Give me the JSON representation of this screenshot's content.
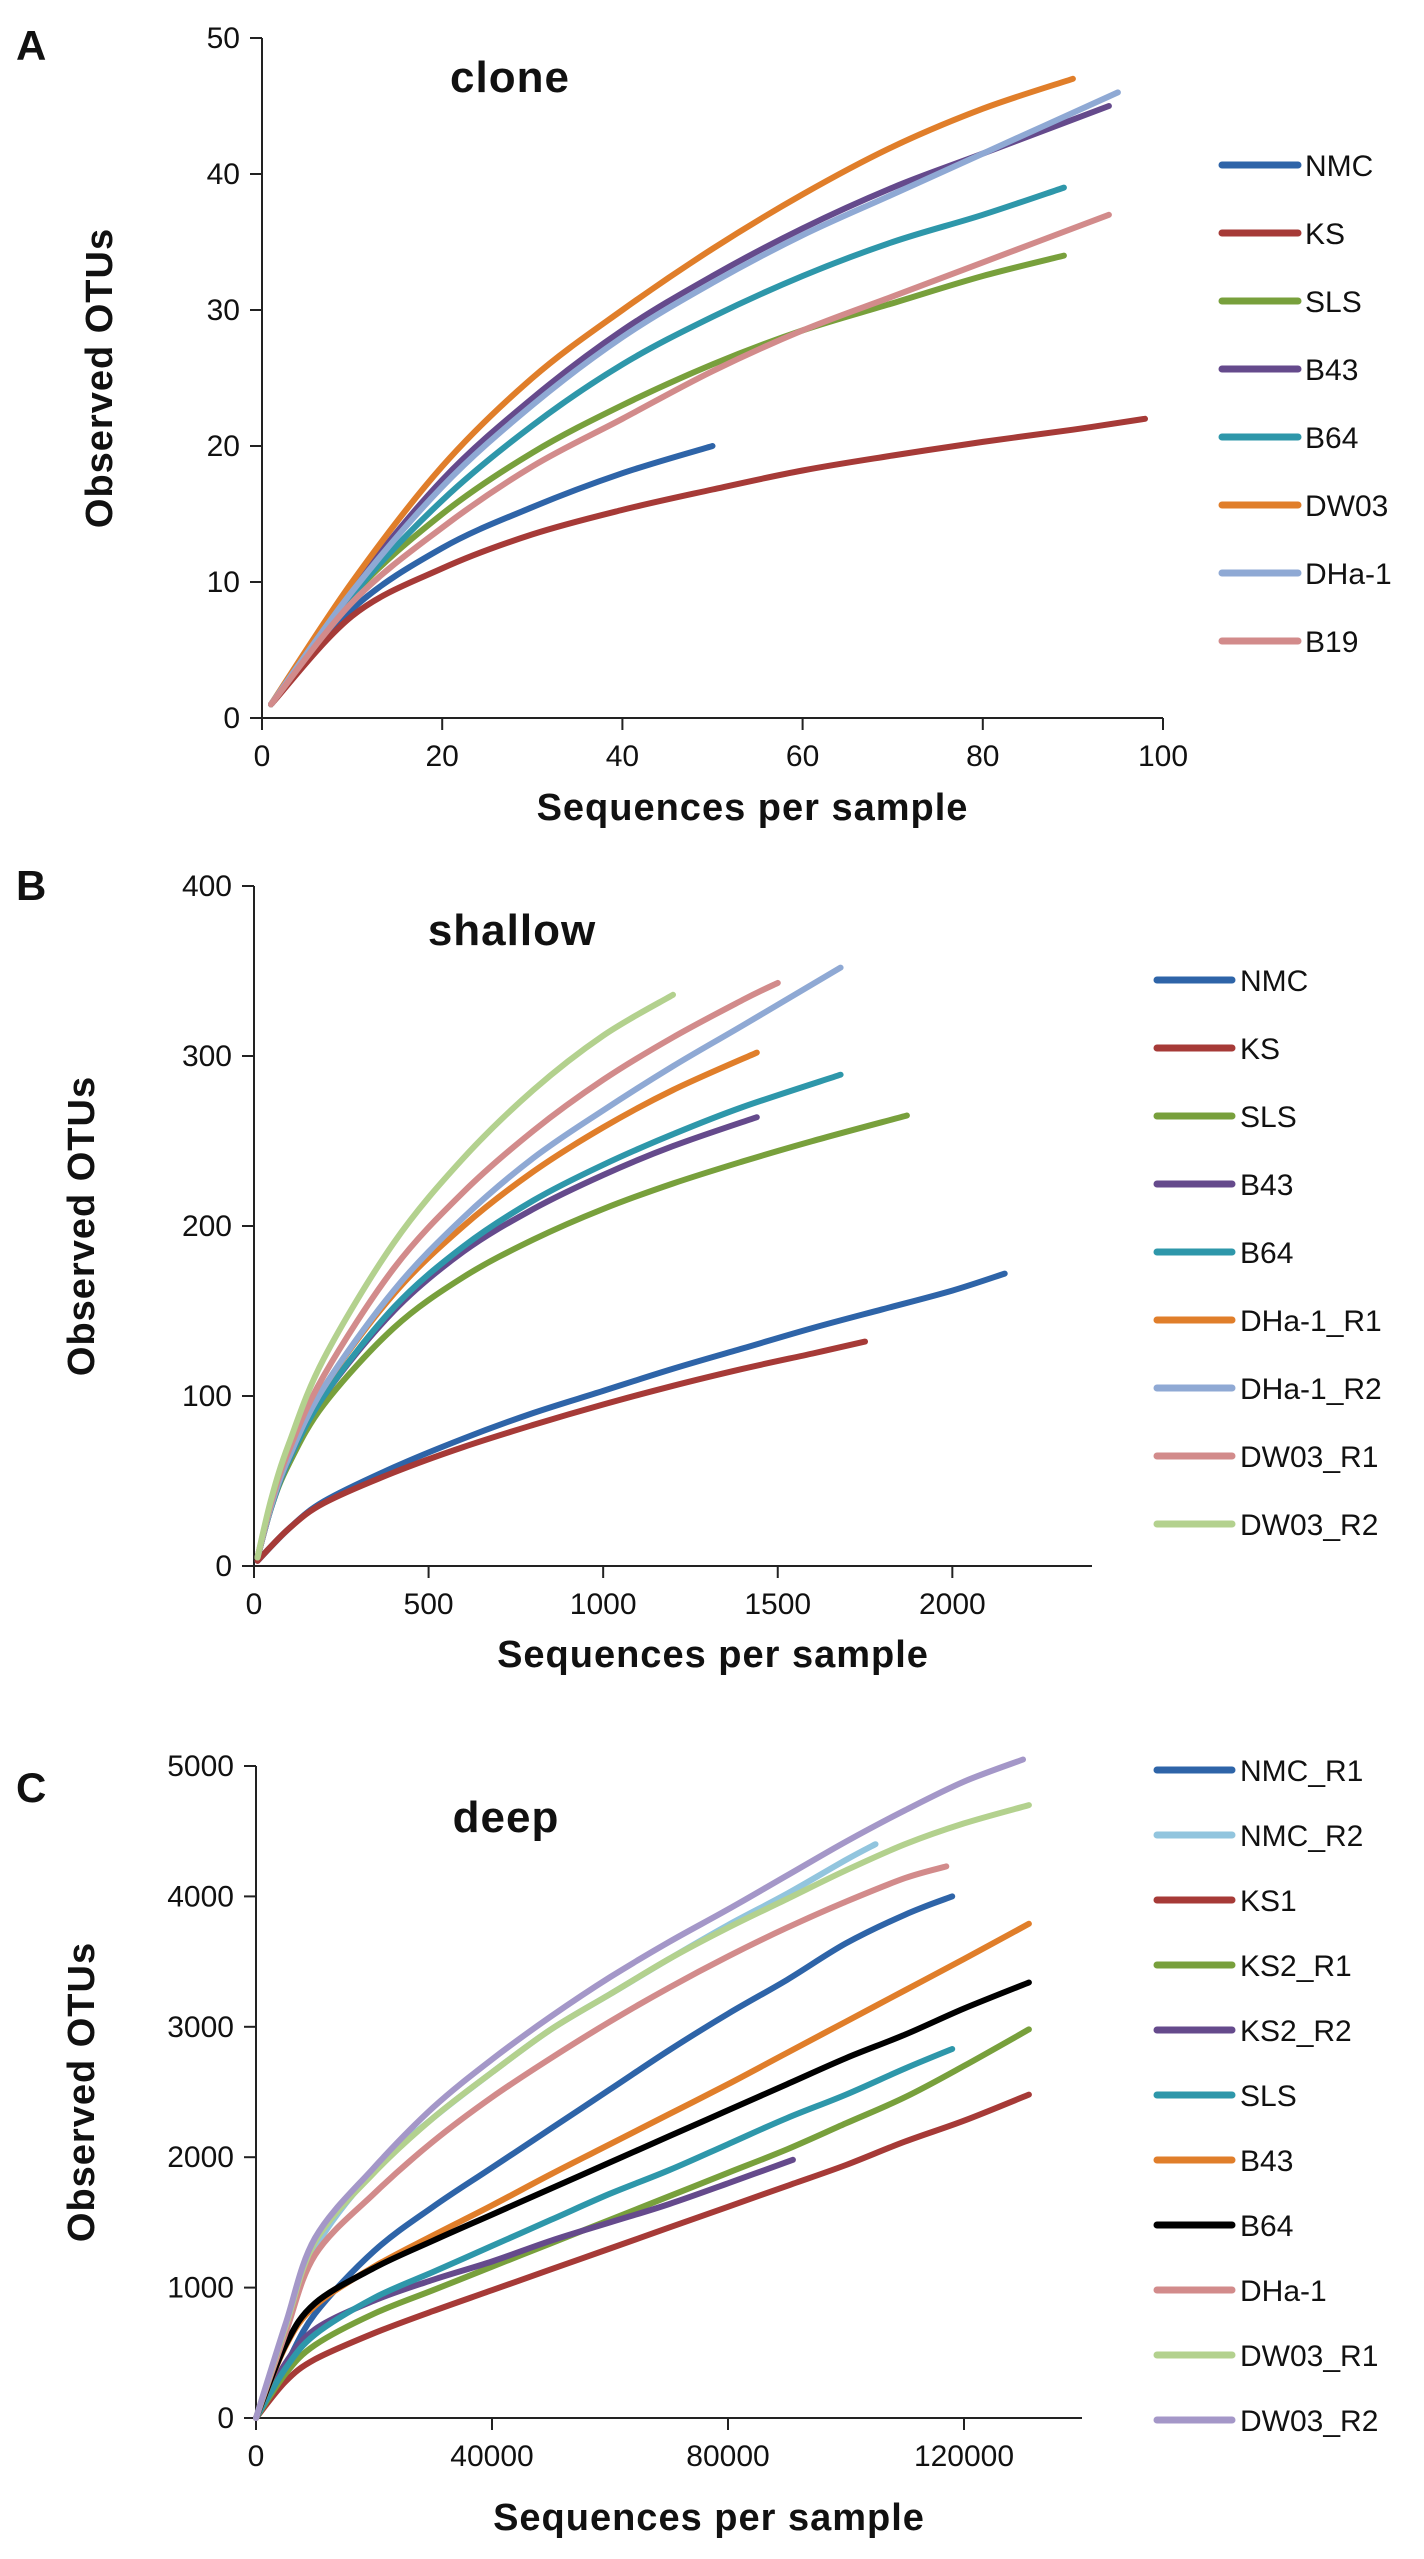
{
  "chart_data": [
    {
      "type": "line",
      "panel": "A",
      "title": "clone",
      "xlabel": "Sequences per sample",
      "ylabel": "Observed OTUs",
      "xlim": [
        0,
        100
      ],
      "ylim": [
        0,
        50
      ],
      "xticks": [
        0,
        20,
        40,
        60,
        80,
        100
      ],
      "yticks": [
        0,
        10,
        20,
        30,
        40,
        50
      ],
      "legend_position": "right",
      "series": [
        {
          "name": "NMC",
          "color": "#2e64a8",
          "x": [
            1,
            10,
            20,
            30,
            40,
            50
          ],
          "y": [
            1,
            8,
            12.5,
            15.5,
            18,
            20
          ]
        },
        {
          "name": "KS",
          "color": "#a63a37",
          "x": [
            1,
            10,
            20,
            30,
            40,
            50,
            60,
            70,
            80,
            90,
            98
          ],
          "y": [
            1,
            7.5,
            11,
            13.5,
            15.3,
            16.8,
            18.2,
            19.3,
            20.3,
            21.2,
            22
          ]
        },
        {
          "name": "SLS",
          "color": "#78a03c",
          "x": [
            1,
            10,
            20,
            30,
            40,
            50,
            60,
            70,
            80,
            89
          ],
          "y": [
            1,
            9,
            15,
            19.5,
            23,
            26,
            28.5,
            30.5,
            32.5,
            34
          ]
        },
        {
          "name": "B43",
          "color": "#654a8c",
          "x": [
            1,
            10,
            20,
            30,
            40,
            50,
            60,
            70,
            80,
            94
          ],
          "y": [
            1,
            9.5,
            17.5,
            23.5,
            28.5,
            32.5,
            36,
            39,
            41.5,
            45
          ]
        },
        {
          "name": "B64",
          "color": "#2e97aa",
          "x": [
            1,
            10,
            20,
            30,
            40,
            50,
            60,
            70,
            80,
            89
          ],
          "y": [
            1,
            9,
            16,
            21.5,
            26,
            29.5,
            32.5,
            35,
            37,
            39
          ]
        },
        {
          "name": "DW03",
          "color": "#e07e2a",
          "x": [
            1,
            10,
            20,
            30,
            40,
            50,
            60,
            70,
            80,
            90
          ],
          "y": [
            1,
            10,
            18.5,
            25,
            30,
            34.5,
            38.5,
            42,
            44.8,
            47
          ]
        },
        {
          "name": "DHa-1",
          "color": "#8fa9d4",
          "x": [
            1,
            10,
            20,
            30,
            40,
            50,
            60,
            70,
            80,
            95
          ],
          "y": [
            1,
            9.3,
            17,
            23,
            28,
            32,
            35.5,
            38.5,
            41.5,
            46
          ]
        },
        {
          "name": "B19",
          "color": "#d28b8b",
          "x": [
            1,
            10,
            20,
            30,
            40,
            50,
            60,
            70,
            80,
            94
          ],
          "y": [
            1,
            8.5,
            14,
            18.5,
            22,
            25.5,
            28.5,
            31,
            33.5,
            37
          ]
        }
      ]
    },
    {
      "type": "line",
      "panel": "B",
      "title": "shallow",
      "xlabel": "Sequences per sample",
      "ylabel": "Observed OTUs",
      "xlim": [
        0,
        2400
      ],
      "ylim": [
        0,
        400
      ],
      "xticks": [
        0,
        500,
        1000,
        1500,
        2000
      ],
      "yticks": [
        0,
        100,
        200,
        300,
        400
      ],
      "legend_position": "right",
      "series": [
        {
          "name": "NMC",
          "color": "#2e64a8",
          "x": [
            10,
            100,
            200,
            400,
            600,
            800,
            1000,
            1200,
            1400,
            1600,
            1800,
            2000,
            2150
          ],
          "y": [
            3,
            22,
            38,
            58,
            75,
            90,
            103,
            116,
            128,
            140,
            151,
            162,
            172
          ]
        },
        {
          "name": "KS",
          "color": "#a63a37",
          "x": [
            10,
            100,
            200,
            400,
            600,
            800,
            1000,
            1200,
            1400,
            1600,
            1750
          ],
          "y": [
            3,
            22,
            37,
            55,
            70,
            83,
            95,
            106,
            116,
            125,
            132
          ]
        },
        {
          "name": "SLS",
          "color": "#78a03c",
          "x": [
            10,
            50,
            100,
            200,
            400,
            600,
            800,
            1000,
            1200,
            1400,
            1600,
            1870
          ],
          "y": [
            5,
            35,
            60,
            95,
            140,
            170,
            192,
            210,
            225,
            238,
            250,
            265
          ]
        },
        {
          "name": "B43",
          "color": "#654a8c",
          "x": [
            10,
            50,
            100,
            200,
            400,
            600,
            800,
            1000,
            1200,
            1440
          ],
          "y": [
            5,
            35,
            62,
            100,
            150,
            185,
            210,
            230,
            247,
            264
          ]
        },
        {
          "name": "B64",
          "color": "#2e97aa",
          "x": [
            10,
            50,
            100,
            200,
            400,
            600,
            800,
            1000,
            1200,
            1400,
            1680
          ],
          "y": [
            5,
            35,
            62,
            100,
            152,
            188,
            215,
            236,
            254,
            270,
            289
          ]
        },
        {
          "name": "DHa-1_R1",
          "color": "#e07e2a",
          "x": [
            10,
            50,
            100,
            200,
            400,
            600,
            800,
            1000,
            1200,
            1440
          ],
          "y": [
            5,
            36,
            64,
            105,
            160,
            200,
            232,
            258,
            280,
            302
          ]
        },
        {
          "name": "DHa-1_R2",
          "color": "#8fa9d4",
          "x": [
            10,
            50,
            100,
            200,
            400,
            600,
            800,
            1000,
            1200,
            1400,
            1680
          ],
          "y": [
            5,
            36,
            64,
            105,
            162,
            205,
            240,
            268,
            294,
            318,
            352
          ]
        },
        {
          "name": "DW03_R1",
          "color": "#d28b8b",
          "x": [
            10,
            50,
            100,
            200,
            400,
            600,
            800,
            1000,
            1200,
            1400,
            1500
          ],
          "y": [
            5,
            38,
            68,
            112,
            175,
            220,
            256,
            286,
            311,
            333,
            343
          ]
        },
        {
          "name": "DW03_R2",
          "color": "#b3d18e",
          "x": [
            10,
            50,
            100,
            200,
            400,
            600,
            800,
            1000,
            1200
          ],
          "y": [
            5,
            40,
            72,
            122,
            190,
            240,
            280,
            312,
            336
          ]
        }
      ]
    },
    {
      "type": "line",
      "panel": "C",
      "title": "deep",
      "xlabel": "Sequences per sample",
      "ylabel": "Observed OTUs",
      "xlim": [
        0,
        140000
      ],
      "ylim": [
        0,
        5000
      ],
      "xticks": [
        0,
        40000,
        80000,
        120000
      ],
      "yticks": [
        0,
        1000,
        2000,
        3000,
        4000,
        5000
      ],
      "legend_position": "right",
      "series": [
        {
          "name": "NMC_R1",
          "color": "#2e64a8",
          "x": [
            0,
            5000,
            10000,
            20000,
            30000,
            40000,
            50000,
            60000,
            70000,
            80000,
            90000,
            100000,
            110000,
            118000
          ],
          "y": [
            0,
            400,
            800,
            1280,
            1620,
            1920,
            2220,
            2520,
            2820,
            3100,
            3360,
            3640,
            3860,
            4000
          ]
        },
        {
          "name": "NMC_R2",
          "color": "#92c5de",
          "x": [
            0,
            5000,
            10000,
            20000,
            30000,
            40000,
            50000,
            60000,
            70000,
            80000,
            90000,
            100000,
            105000
          ],
          "y": [
            0,
            650,
            1300,
            1900,
            2300,
            2650,
            2980,
            3250,
            3520,
            3780,
            4020,
            4280,
            4400
          ]
        },
        {
          "name": "KS1",
          "color": "#a63a37",
          "x": [
            0,
            5000,
            10000,
            20000,
            30000,
            40000,
            50000,
            60000,
            70000,
            80000,
            90000,
            100000,
            110000,
            120000,
            131000
          ],
          "y": [
            0,
            280,
            450,
            650,
            820,
            980,
            1140,
            1300,
            1460,
            1620,
            1780,
            1940,
            2120,
            2280,
            2480
          ]
        },
        {
          "name": "KS2_R1",
          "color": "#78a03c",
          "x": [
            0,
            5000,
            10000,
            20000,
            30000,
            40000,
            50000,
            60000,
            70000,
            80000,
            90000,
            100000,
            110000,
            120000,
            131000
          ],
          "y": [
            0,
            340,
            560,
            800,
            980,
            1160,
            1340,
            1520,
            1700,
            1880,
            2060,
            2260,
            2460,
            2700,
            2980
          ]
        },
        {
          "name": "KS2_R2",
          "color": "#654a8c",
          "x": [
            0,
            5000,
            10000,
            20000,
            30000,
            40000,
            50000,
            60000,
            70000,
            80000,
            91000
          ],
          "y": [
            0,
            420,
            680,
            900,
            1060,
            1200,
            1360,
            1500,
            1640,
            1800,
            1980
          ]
        },
        {
          "name": "SLS",
          "color": "#2e97aa",
          "x": [
            0,
            5000,
            10000,
            20000,
            30000,
            40000,
            50000,
            60000,
            70000,
            80000,
            90000,
            100000,
            110000,
            118000
          ],
          "y": [
            0,
            380,
            640,
            920,
            1120,
            1320,
            1520,
            1720,
            1900,
            2100,
            2300,
            2480,
            2680,
            2830
          ]
        },
        {
          "name": "B43",
          "color": "#e07e2a",
          "x": [
            0,
            5000,
            10000,
            20000,
            30000,
            40000,
            50000,
            60000,
            70000,
            80000,
            90000,
            100000,
            110000,
            120000,
            131000
          ],
          "y": [
            0,
            550,
            860,
            1160,
            1400,
            1630,
            1870,
            2100,
            2330,
            2560,
            2800,
            3040,
            3280,
            3520,
            3790
          ]
        },
        {
          "name": "B64",
          "color": "#000000",
          "x": [
            0,
            5000,
            10000,
            20000,
            30000,
            40000,
            50000,
            60000,
            70000,
            80000,
            90000,
            100000,
            110000,
            120000,
            131000
          ],
          "y": [
            0,
            560,
            880,
            1150,
            1360,
            1560,
            1760,
            1960,
            2160,
            2360,
            2560,
            2760,
            2940,
            3140,
            3340
          ]
        },
        {
          "name": "DHa-1",
          "color": "#d28b8b",
          "x": [
            0,
            5000,
            10000,
            20000,
            30000,
            40000,
            50000,
            60000,
            70000,
            80000,
            90000,
            100000,
            110000,
            117000
          ],
          "y": [
            0,
            650,
            1250,
            1720,
            2120,
            2460,
            2760,
            3040,
            3300,
            3540,
            3760,
            3960,
            4140,
            4230
          ]
        },
        {
          "name": "DW03_R1",
          "color": "#b3d18e",
          "x": [
            0,
            5000,
            10000,
            20000,
            30000,
            40000,
            50000,
            60000,
            70000,
            80000,
            90000,
            100000,
            110000,
            120000,
            131000
          ],
          "y": [
            0,
            700,
            1350,
            1880,
            2300,
            2650,
            2980,
            3250,
            3520,
            3760,
            3980,
            4200,
            4400,
            4560,
            4700
          ]
        },
        {
          "name": "DW03_R2",
          "color": "#a497c8",
          "x": [
            0,
            5000,
            10000,
            20000,
            30000,
            40000,
            50000,
            60000,
            70000,
            80000,
            90000,
            100000,
            110000,
            120000,
            130000
          ],
          "y": [
            0,
            720,
            1380,
            1920,
            2380,
            2750,
            3080,
            3380,
            3650,
            3900,
            4160,
            4420,
            4660,
            4880,
            5050
          ]
        }
      ]
    }
  ]
}
